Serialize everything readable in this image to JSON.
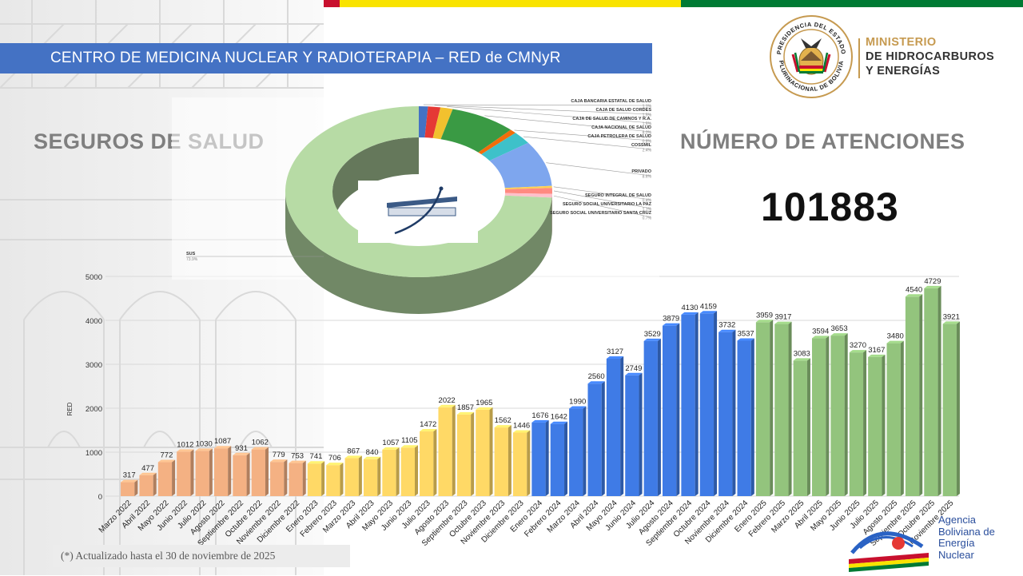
{
  "header": {
    "title": "CENTRO DE MEDICINA NUCLEAR Y RADIOTERAPIA – RED de CMNyR"
  },
  "flag_colors": [
    "#c8102e",
    "#f9e300",
    "#007a33"
  ],
  "ministry": {
    "line1": "MINISTERIO",
    "line2": "DE HIDROCARBUROS",
    "line3": "Y ENERGÍAS"
  },
  "seal": {
    "top_text": "PRESIDENCIA DEL ESTADO",
    "bottom_text": "PLURINACIONAL DE BOLIVIA"
  },
  "left_title": "SEGUROS  DE  SALUD",
  "right_title": "NÚMERO DE ATENCIONES",
  "total_attentions": "101883",
  "footnote": "(*) Actualizado hasta el 30 de noviembre de 2025",
  "agency": {
    "l1": "Agencia",
    "l2": "Boliviana de",
    "l3": "Energía",
    "l4": "Nuclear"
  },
  "chart_data": [
    {
      "type": "pie",
      "title": "",
      "labels": [
        "CAJA BANCARIA ESTATAL DE SALUD",
        "CAJA DE SALUD CORDES",
        "CAJA DE SALUD DE CAMINOS Y R.A.",
        "CAJA NACIONAL DE SALUD",
        "CAJA PETROLERA DE SALUD",
        "COSSMIL",
        "PRIVADO",
        "SEGURO INTEGRAL DE SALUD",
        "SEGURO SOCIAL UNIVERSITARIO LA PAZ",
        "SEGURO SOCIAL UNIVERSITARIO SANTA CRUZ",
        "SUS"
      ],
      "values": [
        1.1,
        1.5,
        1.5,
        8.0,
        0.8,
        2.4,
        8.6,
        0.4,
        1.1,
        0.7,
        73.9
      ],
      "value_labels": [
        "1.1%",
        "1.5%",
        "1.5%",
        "8.0%",
        "0.8%",
        "2.4%",
        "8.6%",
        "0.4%",
        "1.1%",
        "0.7%",
        "73.9%"
      ],
      "colors": [
        "#4472c4",
        "#e53935",
        "#f2c12e",
        "#3a9a44",
        "#f26d0a",
        "#3ec1c9",
        "#7ea6ee",
        "#ffd054",
        "#ff8a80",
        "#ffc0cb",
        "#b7dba5"
      ],
      "style": "3d-donut"
    },
    {
      "type": "bar",
      "title": "",
      "xlabel": "",
      "ylabel": "RED",
      "ylim": [
        0,
        5000
      ],
      "yticks": [
        0,
        1000,
        2000,
        3000,
        4000,
        5000
      ],
      "grid": true,
      "legend": "none",
      "categories": [
        "Marzo 2022",
        "Abril 2022",
        "Mayo 2022",
        "Junio 2022",
        "Julio 2022",
        "Agosto 2022",
        "Septiembre 2022",
        "Octubre 2022",
        "Noviembre 2022",
        "Diciembre 2022",
        "Enero 2023",
        "Febrero 2023",
        "Marzo 2023",
        "Abril 2023",
        "Mayo 2023",
        "Junio 2023",
        "Julio 2023",
        "Agosto 2023",
        "Septiembre 2023",
        "Octubre 2023",
        "Noviembre 2023",
        "Diciembre 2023",
        "Enero 2024",
        "Febrero 2024",
        "Marzo 2024",
        "Abril 2024",
        "Mayo 2024",
        "Junio 2024",
        "Julio 2024",
        "Agosto 2024",
        "Septiembre 2024",
        "Octubre 2024",
        "Noviembre 2024",
        "Diciembre 2024",
        "Enero 2025",
        "Febrero 2025",
        "Marzo 2025",
        "Abril 2025",
        "Mayo 2025",
        "Junio 2025",
        "Julio 2025",
        "Agosto 2025",
        "Septiembre 2025",
        "Octubre 2025",
        "Noviembre 2025"
      ],
      "values": [
        317,
        477,
        772,
        1012,
        1030,
        1087,
        931,
        1062,
        779,
        753,
        741,
        706,
        867,
        840,
        1057,
        1105,
        1472,
        2022,
        1857,
        1965,
        1562,
        1446,
        1676,
        1642,
        1990,
        2560,
        3127,
        2749,
        3529,
        3879,
        4130,
        4159,
        3732,
        3537,
        3959,
        3917,
        3083,
        3594,
        3653,
        3270,
        3167,
        3480,
        4540,
        4729,
        3921
      ],
      "year_colors": {
        "2022": "#f4b183",
        "2023": "#ffd966",
        "2024": "#3f7be6",
        "2025": "#93c47d"
      }
    }
  ]
}
